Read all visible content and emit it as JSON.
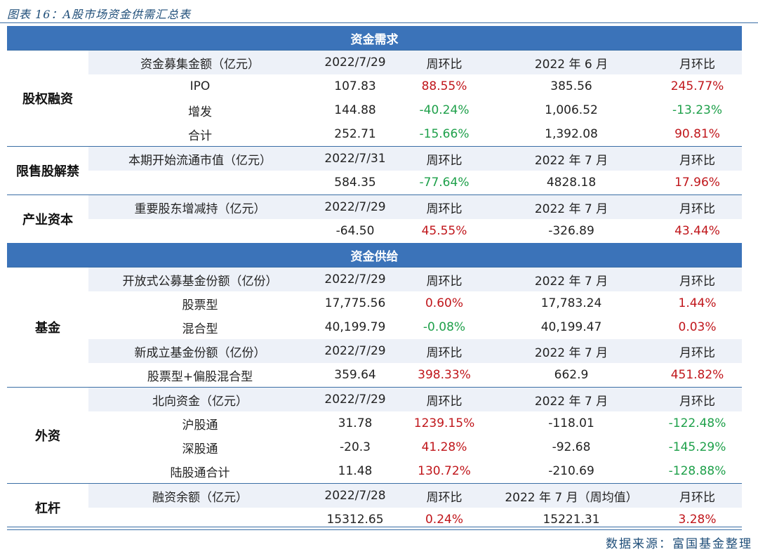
{
  "title": "图表 16：A股市场资金供需汇总表",
  "source": "数据来源：富国基金整理",
  "colors": {
    "band": "#3b73b9",
    "header_bg": "#edf1f8",
    "positive": "#c0161b",
    "negative": "#1ea04a"
  },
  "bands": {
    "demand": "资金需求",
    "supply": "资金供给"
  },
  "groups": {
    "equity": {
      "category": "股权融资",
      "header": [
        "资金募集金额（亿元）",
        "2022/7/29",
        "周环比",
        "2022 年 6 月",
        "月环比"
      ],
      "rows": [
        [
          "IPO",
          "107.83",
          "88.55%",
          "385.56",
          "245.77%"
        ],
        [
          "增发",
          "144.88",
          "-40.24%",
          "1,006.52",
          "-13.23%"
        ],
        [
          "合计",
          "252.71",
          "-15.66%",
          "1,392.08",
          "90.81%"
        ]
      ]
    },
    "unlock": {
      "category": "限售股解禁",
      "header": [
        "本期开始流通市值（亿元）",
        "2022/7/31",
        "周环比",
        "2022 年 7 月",
        "月环比"
      ],
      "rows": [
        [
          "",
          "584.35",
          "-77.64%",
          "4828.18",
          "17.96%"
        ]
      ]
    },
    "industry": {
      "category": "产业资本",
      "header": [
        "重要股东增减持（亿元）",
        "2022/7/29",
        "周环比",
        "2022 年 7 月",
        "月环比"
      ],
      "rows": [
        [
          "",
          "-64.50",
          "45.55%",
          "-326.89",
          "43.44%"
        ]
      ]
    },
    "fund": {
      "category": "基金",
      "header": [
        "开放式公募基金份额（亿份）",
        "2022/7/29",
        "周环比",
        "2022 年 7 月",
        "月环比"
      ],
      "rows": [
        [
          "股票型",
          "17,775.56",
          "0.60%",
          "17,783.24",
          "1.44%"
        ],
        [
          "混合型",
          "40,199.79",
          "-0.08%",
          "40,199.47",
          "0.03%"
        ]
      ],
      "header2": [
        "新成立基金份额（亿份）",
        "2022/7/29",
        "周环比",
        "2022 年 7 月",
        "月环比"
      ],
      "rows2": [
        [
          "股票型+偏股混合型",
          "359.64",
          "398.33%",
          "662.9",
          "451.82%"
        ]
      ]
    },
    "foreign": {
      "category": "外资",
      "header": [
        "北向资金（亿元）",
        "2022/7/29",
        "周环比",
        "2022 年 7 月",
        "月环比"
      ],
      "rows": [
        [
          "沪股通",
          "31.78",
          "1239.15%",
          "-118.01",
          "-122.48%"
        ],
        [
          "深股通",
          "-20.3",
          "41.28%",
          "-92.68",
          "-145.29%"
        ],
        [
          "陆股通合计",
          "11.48",
          "130.72%",
          "-210.69",
          "-128.88%"
        ]
      ]
    },
    "leverage": {
      "category": "杠杆",
      "header": [
        "融资余额（亿元）",
        "2022/7/28",
        "周环比",
        "2022 年 7 月（周均值）",
        "月环比"
      ],
      "rows": [
        [
          "",
          "15312.65",
          "0.24%",
          "15221.31",
          "3.28%"
        ]
      ]
    }
  }
}
